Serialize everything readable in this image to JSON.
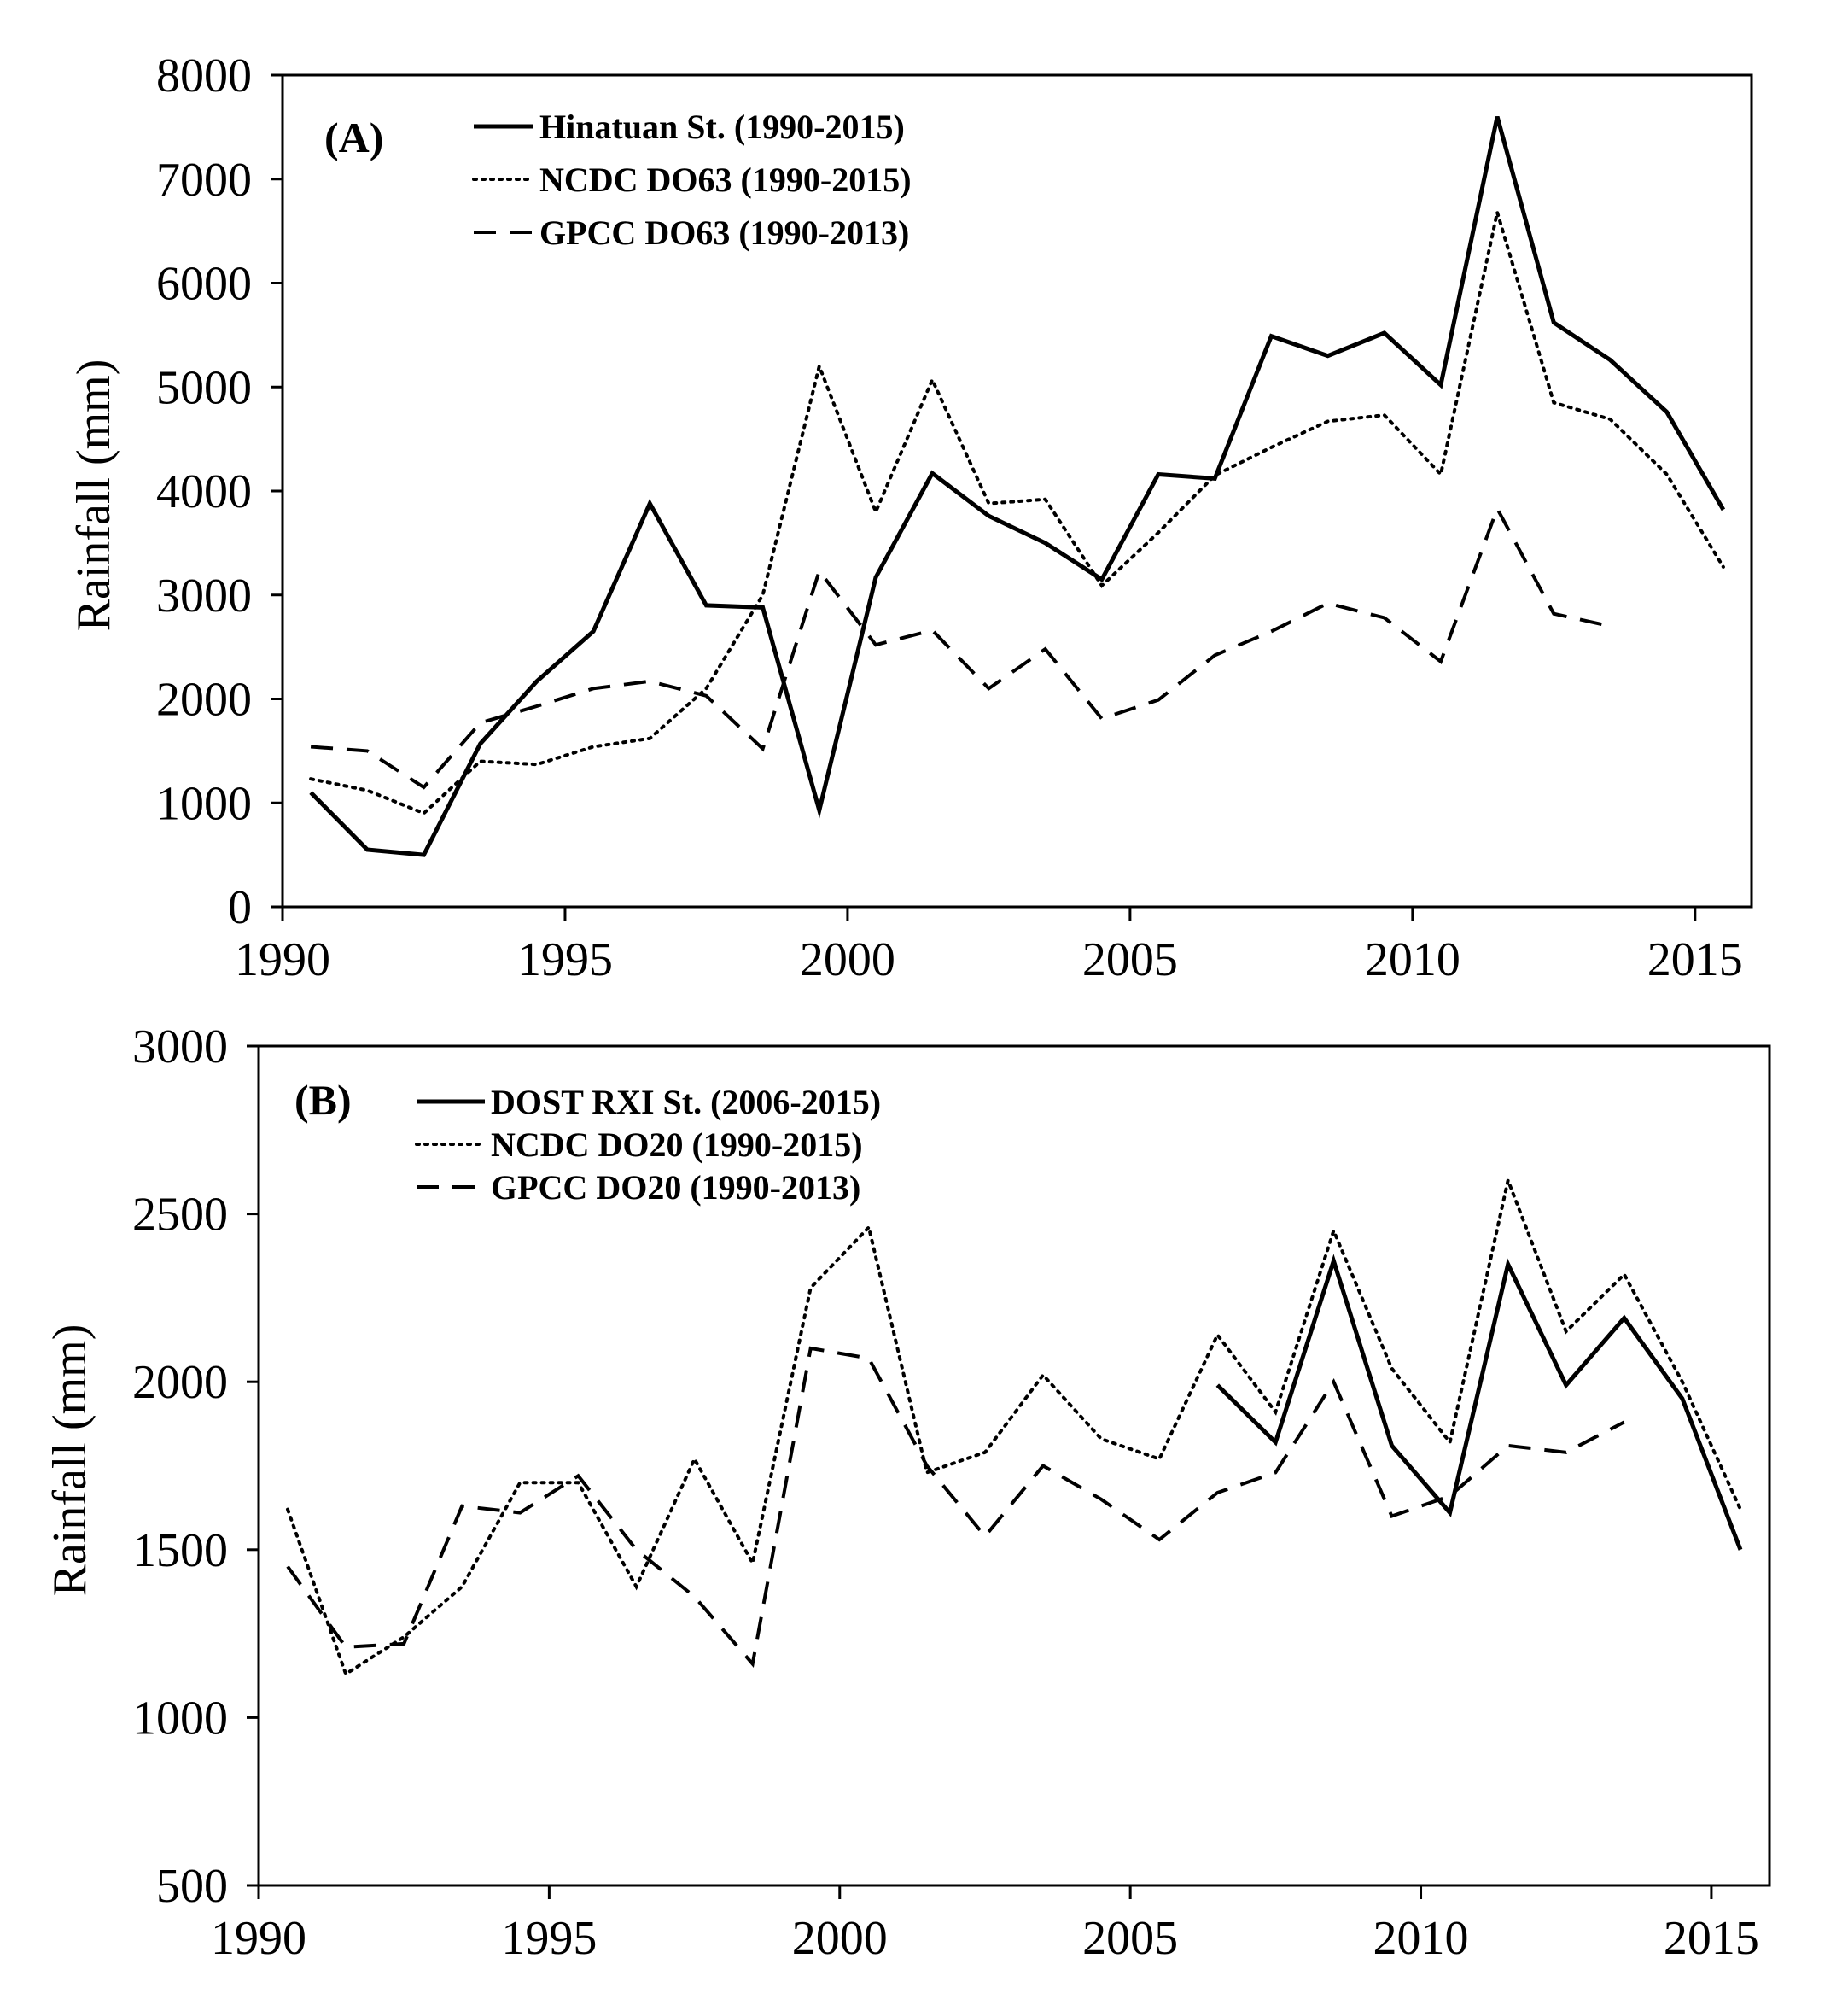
{
  "chart_data": [
    {
      "type": "line",
      "panel_label": "(A)",
      "ylabel": "Rainfall (mm)",
      "xlabel": "",
      "ylim": [
        0,
        8000
      ],
      "yticks": [
        "0",
        "1000",
        "2000",
        "3000",
        "4000",
        "5000",
        "6000",
        "7000",
        "8000"
      ],
      "xlim": [
        1990,
        2016
      ],
      "xticks": [
        "1990",
        "1995",
        "2000",
        "2005",
        "2010",
        "2015"
      ],
      "x": [
        1990,
        1991,
        1992,
        1993,
        1994,
        1995,
        1996,
        1997,
        1998,
        1999,
        2000,
        2001,
        2002,
        2003,
        2004,
        2005,
        2006,
        2007,
        2008,
        2009,
        2010,
        2011,
        2012,
        2013,
        2014,
        2015
      ],
      "series": [
        {
          "name": "Hinatuan St. (1990-2015)",
          "style": "solid",
          "values": [
            1100,
            550,
            500,
            1570,
            2170,
            2650,
            3880,
            2900,
            2880,
            930,
            3170,
            4170,
            3760,
            3500,
            3150,
            4160,
            4120,
            5490,
            5300,
            5520,
            5020,
            7600,
            5620,
            5260,
            4760,
            3820
          ]
        },
        {
          "name": "NCDC DO63 (1990-2015)",
          "style": "dotted",
          "values": [
            1230,
            1120,
            900,
            1400,
            1370,
            1540,
            1620,
            2100,
            3000,
            5200,
            3800,
            5070,
            3880,
            3920,
            3090,
            3600,
            4150,
            4420,
            4670,
            4730,
            4160,
            6680,
            4850,
            4690,
            4160,
            3270
          ]
        },
        {
          "name": "GPCC DO63 (1990-2013)",
          "style": "dashed",
          "values": [
            1540,
            1500,
            1150,
            1770,
            1930,
            2100,
            2170,
            2030,
            1520,
            3230,
            2520,
            2660,
            2100,
            2480,
            1810,
            1990,
            2420,
            2650,
            2920,
            2780,
            2360,
            3830,
            2820,
            2700,
            null,
            null
          ]
        }
      ]
    },
    {
      "type": "line",
      "panel_label": "(B)",
      "ylabel": "Rainfall (mm)",
      "xlabel": "",
      "ylim": [
        500,
        3000
      ],
      "yticks": [
        "500",
        "1000",
        "1500",
        "2000",
        "2500",
        "3000"
      ],
      "xlim": [
        1990,
        2016
      ],
      "xticks": [
        "1990",
        "1995",
        "2000",
        "2005",
        "2010",
        "2015"
      ],
      "x": [
        1990,
        1991,
        1992,
        1993,
        1994,
        1995,
        1996,
        1997,
        1998,
        1999,
        2000,
        2001,
        2002,
        2003,
        2004,
        2005,
        2006,
        2007,
        2008,
        2009,
        2010,
        2011,
        2012,
        2013,
        2014,
        2015
      ],
      "series": [
        {
          "name": "DOST RXI St. (2006-2015)",
          "style": "solid",
          "values": [
            null,
            null,
            null,
            null,
            null,
            null,
            null,
            null,
            null,
            null,
            null,
            null,
            null,
            null,
            null,
            null,
            1990,
            1820,
            2360,
            1810,
            1610,
            2350,
            1990,
            2190,
            1950,
            1500
          ]
        },
        {
          "name": "NCDC DO20 (1990-2015)",
          "style": "dotted",
          "values": [
            1620,
            1130,
            1240,
            1390,
            1700,
            1700,
            1390,
            1770,
            1460,
            2280,
            2460,
            1730,
            1790,
            2020,
            1830,
            1770,
            2140,
            1910,
            2450,
            2040,
            1820,
            2600,
            2150,
            2320,
            2000,
            1620
          ]
        },
        {
          "name": "GPCC DO20 (1990-2013)",
          "style": "dashed",
          "values": [
            1450,
            1210,
            1220,
            1630,
            1610,
            1720,
            1500,
            1360,
            1160,
            2100,
            2070,
            1750,
            1540,
            1750,
            1650,
            1530,
            1670,
            1730,
            2000,
            1600,
            1660,
            1810,
            1790,
            1880,
            null,
            null
          ]
        }
      ]
    }
  ]
}
